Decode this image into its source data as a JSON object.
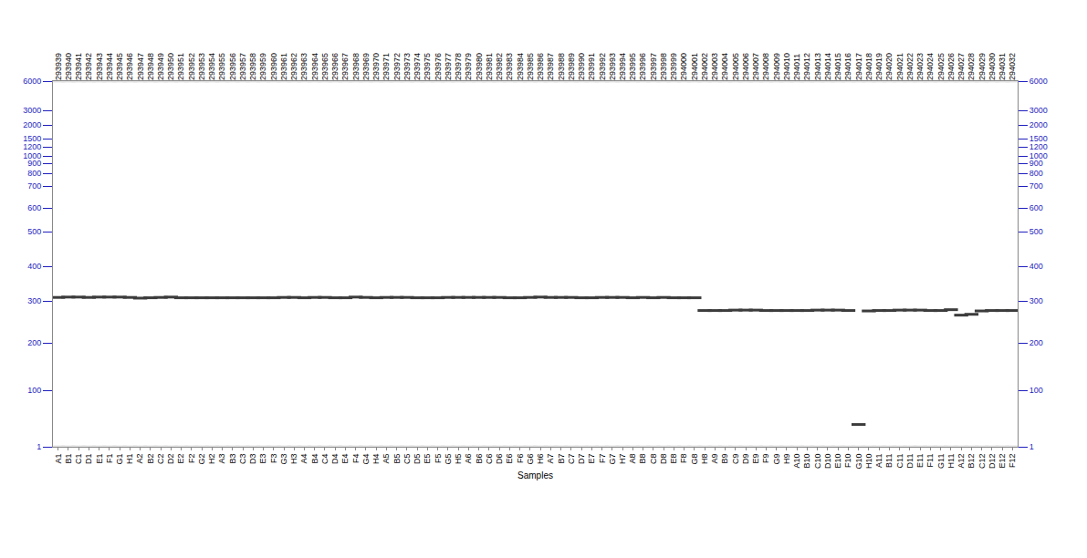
{
  "chart_data": {
    "type": "gel",
    "xlabel": "Samples",
    "grid": false,
    "categories": [
      "A1",
      "B1",
      "C1",
      "D1",
      "E1",
      "F1",
      "G1",
      "H1",
      "A2",
      "B2",
      "C2",
      "D2",
      "E2",
      "F2",
      "G2",
      "H2",
      "A3",
      "B3",
      "C3",
      "D3",
      "E3",
      "F3",
      "G3",
      "H3",
      "A4",
      "B4",
      "C4",
      "D4",
      "E4",
      "F4",
      "G4",
      "H4",
      "A5",
      "B5",
      "C5",
      "D5",
      "E5",
      "F5",
      "G5",
      "H5",
      "A6",
      "B6",
      "C6",
      "D6",
      "E6",
      "F6",
      "G6",
      "H6",
      "A7",
      "B7",
      "C7",
      "D7",
      "E7",
      "F7",
      "G7",
      "H7",
      "A8",
      "B8",
      "C8",
      "D8",
      "E8",
      "F8",
      "G8",
      "H8",
      "A9",
      "B9",
      "C9",
      "D9",
      "E9",
      "F9",
      "G9",
      "H9",
      "A10",
      "B10",
      "C10",
      "D10",
      "E10",
      "F10",
      "G10",
      "H10",
      "A11",
      "B11",
      "C11",
      "D11",
      "E11",
      "F11",
      "G11",
      "H11",
      "A12",
      "B12",
      "C12",
      "D12",
      "E12",
      "F12"
    ],
    "sample_ids": [
      "293939",
      "293940",
      "293941",
      "293942",
      "293943",
      "293944",
      "293945",
      "293946",
      "293947",
      "293948",
      "293949",
      "293950",
      "293951",
      "293952",
      "293953",
      "293954",
      "293955",
      "293956",
      "293957",
      "293958",
      "293959",
      "293960",
      "293961",
      "293962",
      "293963",
      "293964",
      "293965",
      "293966",
      "293967",
      "293968",
      "293969",
      "293970",
      "293971",
      "293972",
      "293973",
      "293974",
      "293975",
      "293976",
      "293977",
      "293978",
      "293979",
      "293980",
      "293981",
      "293982",
      "293983",
      "293984",
      "293985",
      "293986",
      "293987",
      "293988",
      "293989",
      "293990",
      "293991",
      "293992",
      "293993",
      "293994",
      "293995",
      "293996",
      "293997",
      "293998",
      "293999",
      "294000",
      "294001",
      "294002",
      "294003",
      "294004",
      "294005",
      "294006",
      "294007",
      "294008",
      "294009",
      "294010",
      "294011",
      "294012",
      "294013",
      "294014",
      "294015",
      "294016",
      "294017",
      "294018",
      "294019",
      "294020",
      "294021",
      "294022",
      "294023",
      "294024",
      "294025",
      "294026",
      "294027",
      "294028",
      "294029",
      "294030",
      "294031",
      "294032"
    ],
    "ylim": [
      1,
      6000
    ],
    "yticks": [
      1,
      100,
      200,
      300,
      400,
      500,
      600,
      700,
      800,
      900,
      1000,
      1200,
      1500,
      2000,
      3000,
      6000
    ],
    "series": [
      {
        "color": "#e4e4e4",
        "values": [
          1,
          1,
          1,
          1,
          1,
          1,
          1,
          1,
          1,
          1,
          1,
          1,
          1,
          1,
          1,
          1,
          1,
          1,
          1,
          1,
          1,
          1,
          1,
          1,
          1,
          1,
          1,
          1,
          1,
          1,
          1,
          1,
          1,
          1,
          1,
          1,
          1,
          1,
          1,
          1,
          1,
          1,
          1,
          1,
          1,
          1,
          1,
          1,
          1,
          1,
          1,
          1,
          1,
          1,
          1,
          1,
          1,
          1,
          1,
          1,
          1,
          1,
          1,
          1,
          1,
          1,
          1,
          1,
          1,
          1,
          1,
          1,
          1,
          1,
          1,
          1,
          1,
          1,
          1,
          1,
          1,
          1,
          1,
          1,
          1,
          1,
          1,
          1,
          1,
          1,
          1,
          1,
          1,
          1
        ]
      },
      {
        "color": "#e4e4e4",
        "values": [
          6000,
          6000,
          6000,
          6000,
          6000,
          6000,
          6000,
          6000,
          6000,
          6000,
          6000,
          6000,
          6000,
          6000,
          6000,
          6000,
          6000,
          6000,
          6000,
          6000,
          6000,
          6000,
          6000,
          6000,
          6000,
          6000,
          6000,
          6000,
          6000,
          6000,
          6000,
          6000,
          6000,
          6000,
          6000,
          6000,
          6000,
          6000,
          6000,
          6000,
          6000,
          6000,
          6000,
          6000,
          6000,
          6000,
          6000,
          6000,
          6000,
          6000,
          6000,
          6000,
          6000,
          6000,
          6000,
          6000,
          6000,
          6000,
          6000,
          6000,
          6000,
          6000,
          6000,
          6000,
          6000,
          6000,
          6000,
          6000,
          6000,
          6000,
          6000,
          6000,
          6000,
          6000,
          6000,
          6000,
          6000,
          6000,
          6000,
          6000,
          6000,
          6000,
          6000,
          6000,
          6000,
          6000,
          6000,
          6000,
          6000,
          6000,
          6000,
          6000,
          6000,
          6000
        ]
      },
      {
        "color": "#3c3c3c",
        "values": [
          310,
          311,
          311,
          310,
          311,
          311,
          311,
          310,
          308,
          309,
          310,
          311,
          309,
          309,
          309,
          309,
          309,
          309,
          309,
          309,
          309,
          309,
          310,
          310,
          309,
          310,
          310,
          309,
          309,
          311,
          310,
          309,
          310,
          310,
          310,
          309,
          309,
          309,
          310,
          310,
          310,
          310,
          310,
          310,
          309,
          309,
          310,
          311,
          310,
          310,
          310,
          309,
          309,
          310,
          310,
          310,
          309,
          310,
          309,
          310,
          309,
          309,
          309,
          277,
          277,
          277,
          278,
          278,
          278,
          277,
          277,
          277,
          277,
          277,
          278,
          278,
          278,
          277,
          40,
          276,
          277,
          277,
          278,
          278,
          278,
          277,
          277,
          279,
          266,
          268,
          276,
          277,
          277,
          277
        ]
      }
    ]
  }
}
